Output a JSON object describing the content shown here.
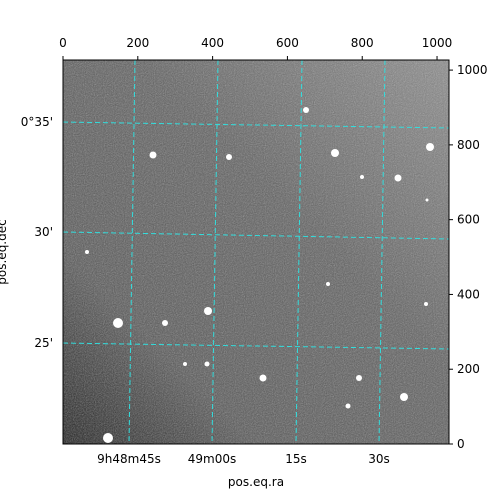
{
  "chart_data": {
    "type": "image",
    "xlabel": "pos.eq.ra",
    "ylabel": "pos.eq.dec",
    "xlim": [
      0,
      1032
    ],
    "xticks": [
      0,
      200,
      400,
      600,
      800,
      1000
    ],
    "ylim": [
      0,
      1027
    ],
    "yticks": [
      0,
      200,
      400,
      600,
      800,
      1000
    ],
    "ra_labels": [
      "9h48m45s",
      "49m00s",
      "15s",
      "30s"
    ],
    "dec_labels": [
      "0°35'",
      "30'",
      "25'"
    ],
    "grid_color": "#33dddd"
  }
}
